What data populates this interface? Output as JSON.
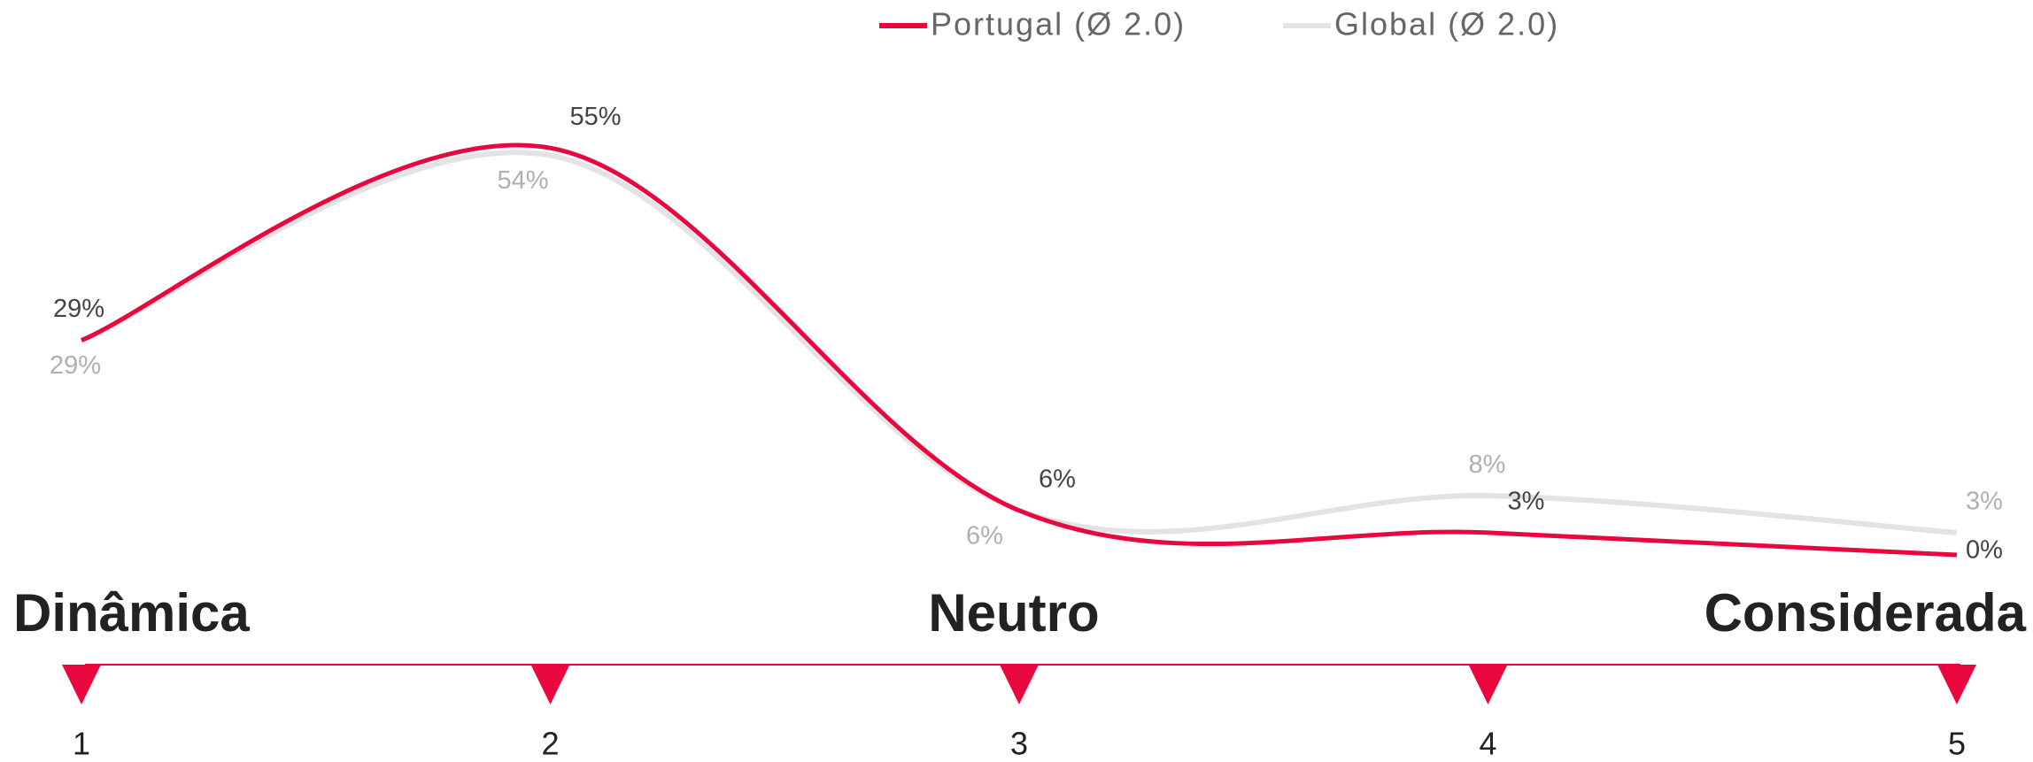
{
  "chart_data": {
    "type": "line",
    "categories": [
      "1",
      "2",
      "3",
      "4",
      "5"
    ],
    "scale_labels": [
      "Dinâmica",
      "Neutro",
      "Considerada"
    ],
    "series": [
      {
        "name": "Portugal (Ø 2.0)",
        "color": "#e8083e",
        "values": [
          29,
          55,
          6,
          3,
          0
        ],
        "value_labels": [
          "29%",
          "55%",
          "6%",
          "3%",
          "0%"
        ]
      },
      {
        "name": "Global (Ø 2.0)",
        "color": "#e3e3e3",
        "values": [
          29,
          54,
          6,
          8,
          3
        ],
        "value_labels": [
          "29%",
          "54%",
          "6%",
          "8%",
          "3%"
        ]
      }
    ],
    "legend": "top"
  }
}
